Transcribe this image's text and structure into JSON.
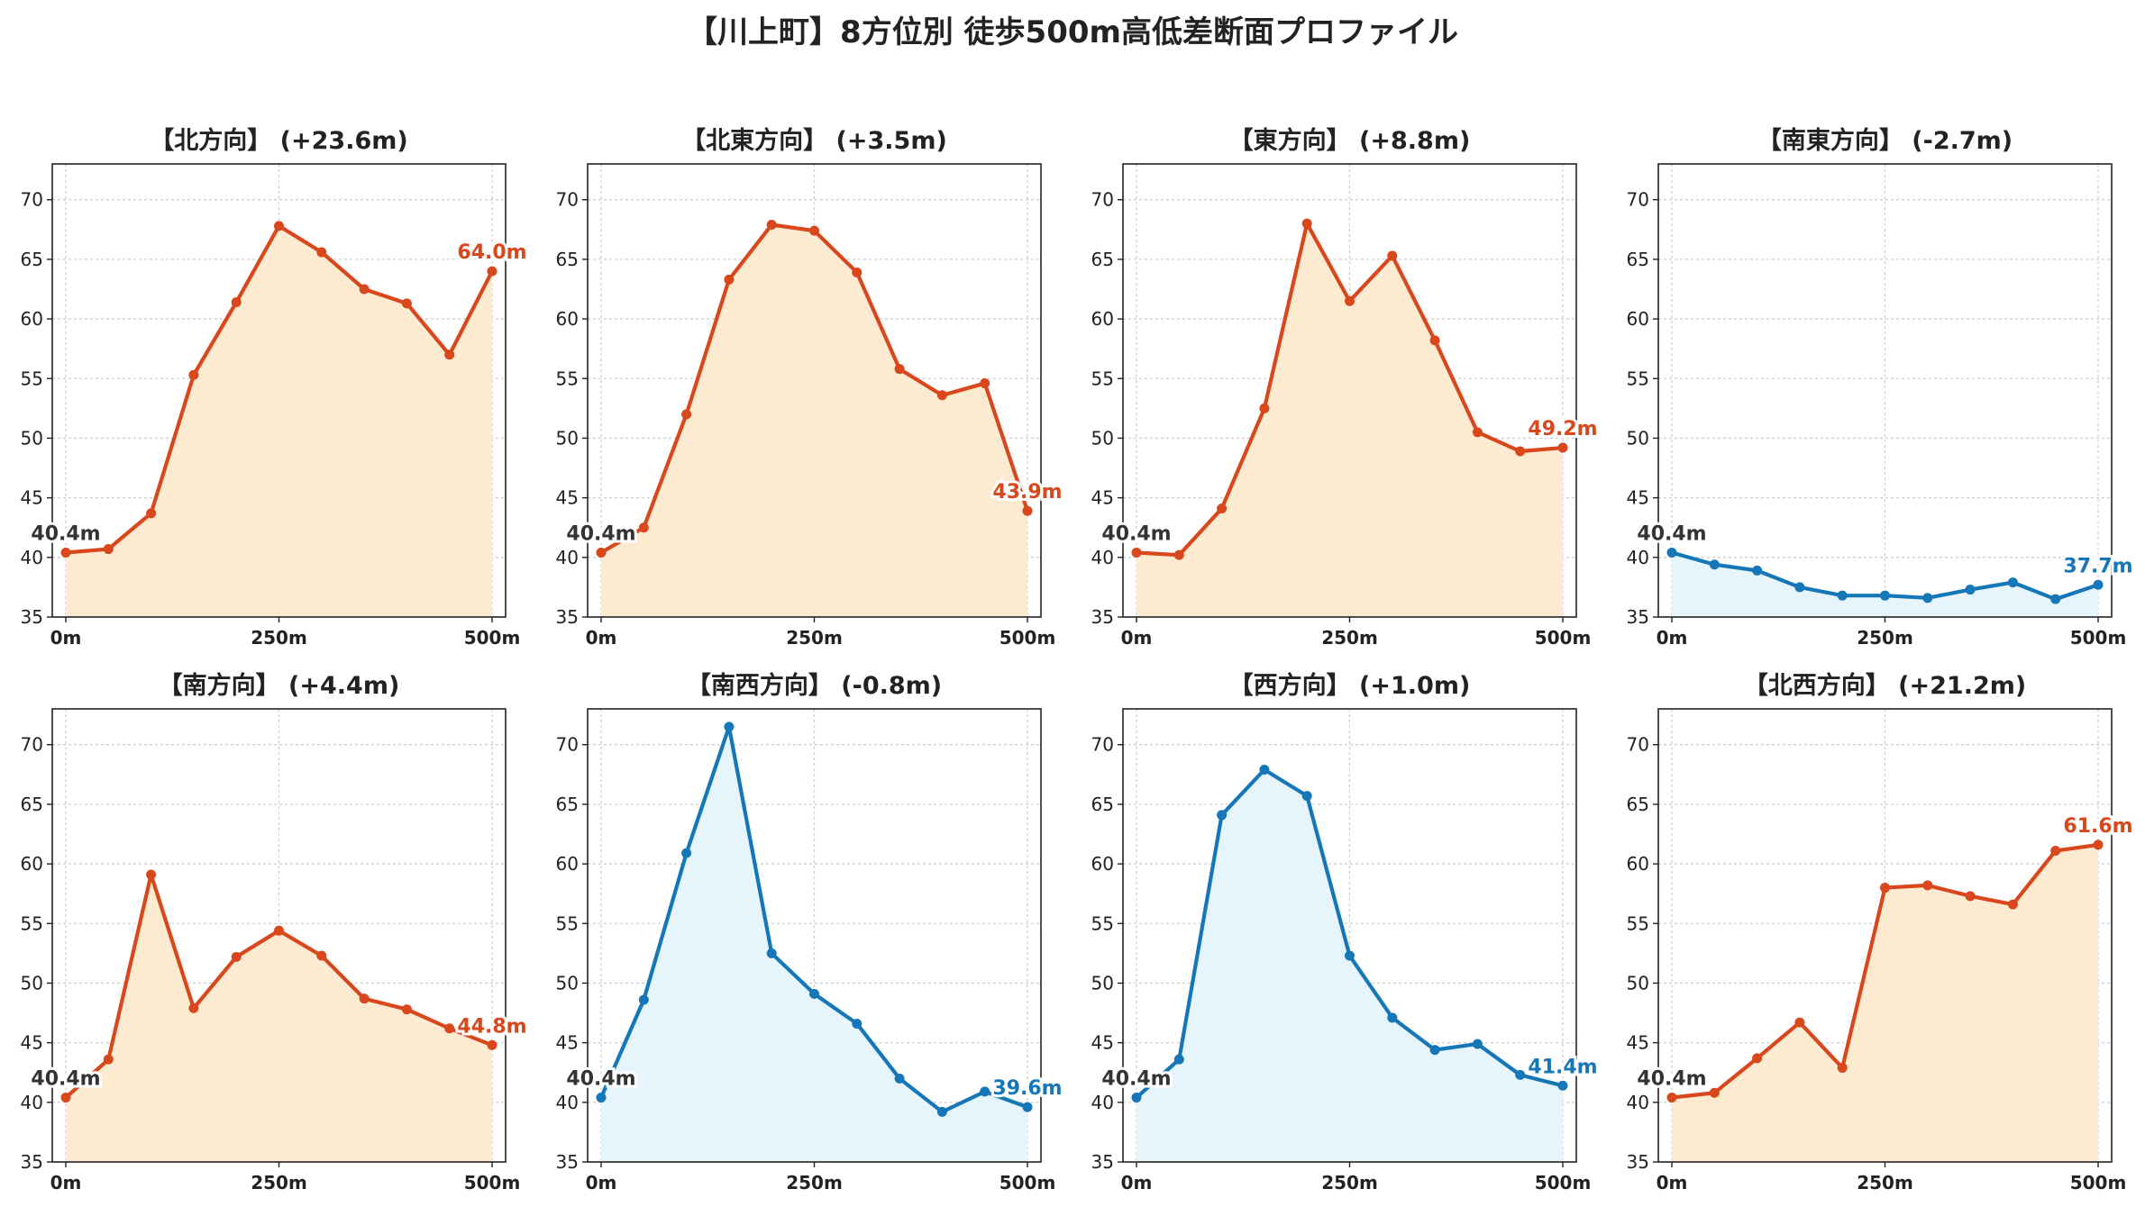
{
  "title": "【川上町】8方位別 徒歩500m高低差断面プロファイル",
  "colors": {
    "up": "#d9471c",
    "up_fill": "#fdebd1",
    "down": "#1577b8",
    "down_fill": "#e6f4fb",
    "start_label": "#333333"
  },
  "chart_data": [
    {
      "type": "area",
      "title": "【北方向】 (+23.6m)",
      "trend": "up",
      "xlim": [
        0,
        500
      ],
      "ylim": [
        35,
        73
      ],
      "xticks": [
        0,
        250,
        500
      ],
      "xtick_labels": [
        "0m",
        "250m",
        "500m"
      ],
      "yticks": [
        35,
        40,
        45,
        50,
        55,
        60,
        65,
        70
      ],
      "x": [
        0,
        50,
        100,
        150,
        200,
        250,
        300,
        350,
        400,
        450,
        500
      ],
      "y": [
        40.4,
        40.7,
        43.7,
        55.3,
        61.4,
        67.8,
        65.6,
        62.5,
        61.3,
        57.0,
        64.0
      ],
      "start_label": "40.4m",
      "end_label": "64.0m"
    },
    {
      "type": "area",
      "title": "【北東方向】 (+3.5m)",
      "trend": "up",
      "xlim": [
        0,
        500
      ],
      "ylim": [
        35,
        73
      ],
      "xticks": [
        0,
        250,
        500
      ],
      "xtick_labels": [
        "0m",
        "250m",
        "500m"
      ],
      "yticks": [
        35,
        40,
        45,
        50,
        55,
        60,
        65,
        70
      ],
      "x": [
        0,
        50,
        100,
        150,
        200,
        250,
        300,
        350,
        400,
        450,
        500
      ],
      "y": [
        40.4,
        42.5,
        52.0,
        63.3,
        67.9,
        67.4,
        63.9,
        55.8,
        53.6,
        54.6,
        43.9
      ],
      "start_label": "40.4m",
      "end_label": "43.9m"
    },
    {
      "type": "area",
      "title": "【東方向】 (+8.8m)",
      "trend": "up",
      "xlim": [
        0,
        500
      ],
      "ylim": [
        35,
        73
      ],
      "xticks": [
        0,
        250,
        500
      ],
      "xtick_labels": [
        "0m",
        "250m",
        "500m"
      ],
      "yticks": [
        35,
        40,
        45,
        50,
        55,
        60,
        65,
        70
      ],
      "x": [
        0,
        50,
        100,
        150,
        200,
        250,
        300,
        350,
        400,
        450,
        500
      ],
      "y": [
        40.4,
        40.2,
        44.1,
        52.5,
        68.0,
        61.5,
        65.3,
        58.2,
        50.5,
        48.9,
        49.2
      ],
      "start_label": "40.4m",
      "end_label": "49.2m"
    },
    {
      "type": "area",
      "title": "【南東方向】 (-2.7m)",
      "trend": "down",
      "xlim": [
        0,
        500
      ],
      "ylim": [
        35,
        73
      ],
      "xticks": [
        0,
        250,
        500
      ],
      "xtick_labels": [
        "0m",
        "250m",
        "500m"
      ],
      "yticks": [
        35,
        40,
        45,
        50,
        55,
        60,
        65,
        70
      ],
      "x": [
        0,
        50,
        100,
        150,
        200,
        250,
        300,
        350,
        400,
        450,
        500
      ],
      "y": [
        40.4,
        39.4,
        38.9,
        37.5,
        36.8,
        36.8,
        36.6,
        37.3,
        37.9,
        36.5,
        37.7
      ],
      "start_label": "40.4m",
      "end_label": "37.7m"
    },
    {
      "type": "area",
      "title": "【南方向】 (+4.4m)",
      "trend": "up",
      "xlim": [
        0,
        500
      ],
      "ylim": [
        35,
        73
      ],
      "xticks": [
        0,
        250,
        500
      ],
      "xtick_labels": [
        "0m",
        "250m",
        "500m"
      ],
      "yticks": [
        35,
        40,
        45,
        50,
        55,
        60,
        65,
        70
      ],
      "x": [
        0,
        50,
        100,
        150,
        200,
        250,
        300,
        350,
        400,
        450,
        500
      ],
      "y": [
        40.4,
        43.6,
        59.1,
        47.9,
        52.2,
        54.4,
        52.3,
        48.7,
        47.8,
        46.2,
        44.8
      ],
      "start_label": "40.4m",
      "end_label": "44.8m"
    },
    {
      "type": "area",
      "title": "【南西方向】 (-0.8m)",
      "trend": "down",
      "xlim": [
        0,
        500
      ],
      "ylim": [
        35,
        73
      ],
      "xticks": [
        0,
        250,
        500
      ],
      "xtick_labels": [
        "0m",
        "250m",
        "500m"
      ],
      "yticks": [
        35,
        40,
        45,
        50,
        55,
        60,
        65,
        70
      ],
      "x": [
        0,
        50,
        100,
        150,
        200,
        250,
        300,
        350,
        400,
        450,
        500
      ],
      "y": [
        40.4,
        48.6,
        60.9,
        71.5,
        52.5,
        49.1,
        46.6,
        42.0,
        39.2,
        40.9,
        39.6
      ],
      "start_label": "40.4m",
      "end_label": "39.6m"
    },
    {
      "type": "area",
      "title": "【西方向】 (+1.0m)",
      "trend": "down",
      "xlim": [
        0,
        500
      ],
      "ylim": [
        35,
        73
      ],
      "xticks": [
        0,
        250,
        500
      ],
      "xtick_labels": [
        "0m",
        "250m",
        "500m"
      ],
      "yticks": [
        35,
        40,
        45,
        50,
        55,
        60,
        65,
        70
      ],
      "x": [
        0,
        50,
        100,
        150,
        200,
        250,
        300,
        350,
        400,
        450,
        500
      ],
      "y": [
        40.4,
        43.6,
        64.1,
        67.9,
        65.7,
        52.3,
        47.1,
        44.4,
        44.9,
        42.3,
        41.4
      ],
      "start_label": "40.4m",
      "end_label": "41.4m"
    },
    {
      "type": "area",
      "title": "【北西方向】 (+21.2m)",
      "trend": "up",
      "xlim": [
        0,
        500
      ],
      "ylim": [
        35,
        73
      ],
      "xticks": [
        0,
        250,
        500
      ],
      "xtick_labels": [
        "0m",
        "250m",
        "500m"
      ],
      "yticks": [
        35,
        40,
        45,
        50,
        55,
        60,
        65,
        70
      ],
      "x": [
        0,
        50,
        100,
        150,
        200,
        250,
        300,
        350,
        400,
        450,
        500
      ],
      "y": [
        40.4,
        40.8,
        43.7,
        46.7,
        42.9,
        58.0,
        58.2,
        57.3,
        56.6,
        61.1,
        61.6
      ],
      "start_label": "40.4m",
      "end_label": "61.6m"
    }
  ]
}
